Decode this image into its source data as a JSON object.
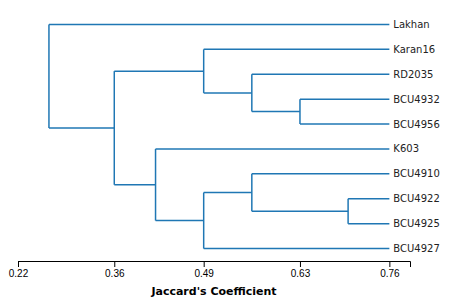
{
  "chart_data": {
    "type": "dendrogram",
    "xlabel": "Jaccard's Coefficient",
    "xlim": [
      0.22,
      0.79
    ],
    "xticks": [
      0.22,
      0.36,
      0.49,
      0.63,
      0.76
    ],
    "tree": {
      "value": 0.265,
      "children": [
        {
          "name": "Lakhan",
          "value": 0.76
        },
        {
          "value": 0.36,
          "children": [
            {
              "value": 0.49,
              "children": [
                {
                  "name": "Karan16",
                  "value": 0.76
                },
                {
                  "value": 0.56,
                  "children": [
                    {
                      "name": "RD2035",
                      "value": 0.76
                    },
                    {
                      "value": 0.63,
                      "children": [
                        {
                          "name": "BCU4932",
                          "value": 0.76
                        },
                        {
                          "name": "BCU4956",
                          "value": 0.76
                        }
                      ]
                    }
                  ]
                }
              ]
            },
            {
              "value": 0.42,
              "children": [
                {
                  "name": "K603",
                  "value": 0.76
                },
                {
                  "value": 0.49,
                  "children": [
                    {
                      "value": 0.56,
                      "children": [
                        {
                          "name": "BCU4910",
                          "value": 0.76
                        },
                        {
                          "value": 0.7,
                          "children": [
                            {
                              "name": "BCU4922",
                              "value": 0.76
                            },
                            {
                              "name": "BCU4925",
                              "value": 0.76
                            }
                          ]
                        }
                      ]
                    },
                    {
                      "name": "BCU4927",
                      "value": 0.76
                    }
                  ]
                }
              ]
            }
          ]
        }
      ]
    }
  }
}
